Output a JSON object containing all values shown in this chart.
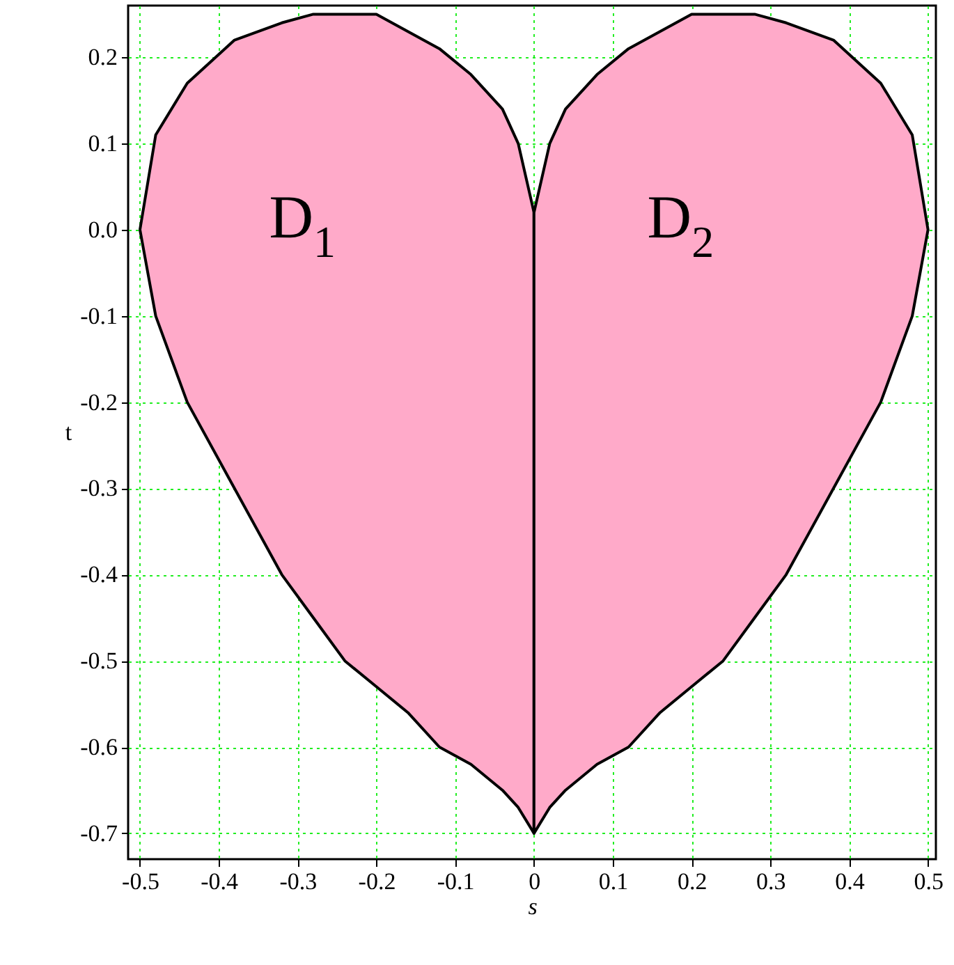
{
  "chart_data": {
    "type": "area",
    "xlabel": "s",
    "ylabel": "t",
    "xlim": [
      -0.515,
      0.51
    ],
    "ylim": [
      -0.73,
      0.26
    ],
    "xticks": [
      -0.5,
      -0.4,
      -0.3,
      -0.2,
      -0.1,
      0,
      0.1,
      0.2,
      0.3,
      0.4,
      0.5
    ],
    "yticks": [
      -0.7,
      -0.6,
      -0.5,
      -0.4,
      -0.3,
      -0.2,
      -0.1,
      {
        "value": 0,
        "label": "0.0"
      },
      0.1,
      0.2
    ],
    "grid": true,
    "series": [
      {
        "name": "D$_{1}$",
        "color": "#ffaac9",
        "x": [
          -0.5,
          -0.48,
          -0.44,
          -0.38,
          -0.32,
          -0.28,
          -0.24,
          -0.2,
          -0.16,
          -0.12,
          -0.08,
          -0.04,
          -0.02,
          0,
          0,
          -0.02,
          -0.04,
          -0.08,
          -0.12,
          -0.16,
          -0.2,
          -0.24,
          -0.28,
          -0.32,
          -0.38,
          -0.44,
          -0.48,
          -0.5
        ],
        "values": [
          0,
          0.11,
          0.17,
          0.22,
          0.24,
          0.25,
          0.25,
          0.25,
          0.23,
          0.21,
          0.18,
          0.14,
          0.1,
          0.02,
          -0.7,
          -0.67,
          -0.65,
          -0.62,
          -0.6,
          -0.56,
          -0.53,
          -0.5,
          -0.45,
          -0.4,
          -0.3,
          -0.2,
          -0.1,
          0
        ]
      },
      {
        "name": "D$_{2}$",
        "color": "#ffaac9",
        "x": [
          0,
          0.02,
          0.04,
          0.08,
          0.12,
          0.16,
          0.2,
          0.24,
          0.28,
          0.32,
          0.38,
          0.44,
          0.48,
          0.5,
          0.48,
          0.44,
          0.38,
          0.32,
          0.28,
          0.24,
          0.2,
          0.16,
          0.12,
          0.08,
          0.04,
          0.02,
          0,
          0
        ],
        "values": [
          0.02,
          0.1,
          0.14,
          0.18,
          0.21,
          0.23,
          0.25,
          0.25,
          0.25,
          0.24,
          0.22,
          0.17,
          0.11,
          0,
          -0.1,
          -0.2,
          -0.3,
          -0.4,
          -0.45,
          -0.5,
          -0.53,
          -0.56,
          -0.6,
          -0.62,
          -0.65,
          -0.67,
          -0.7,
          0.02
        ]
      }
    ]
  }
}
